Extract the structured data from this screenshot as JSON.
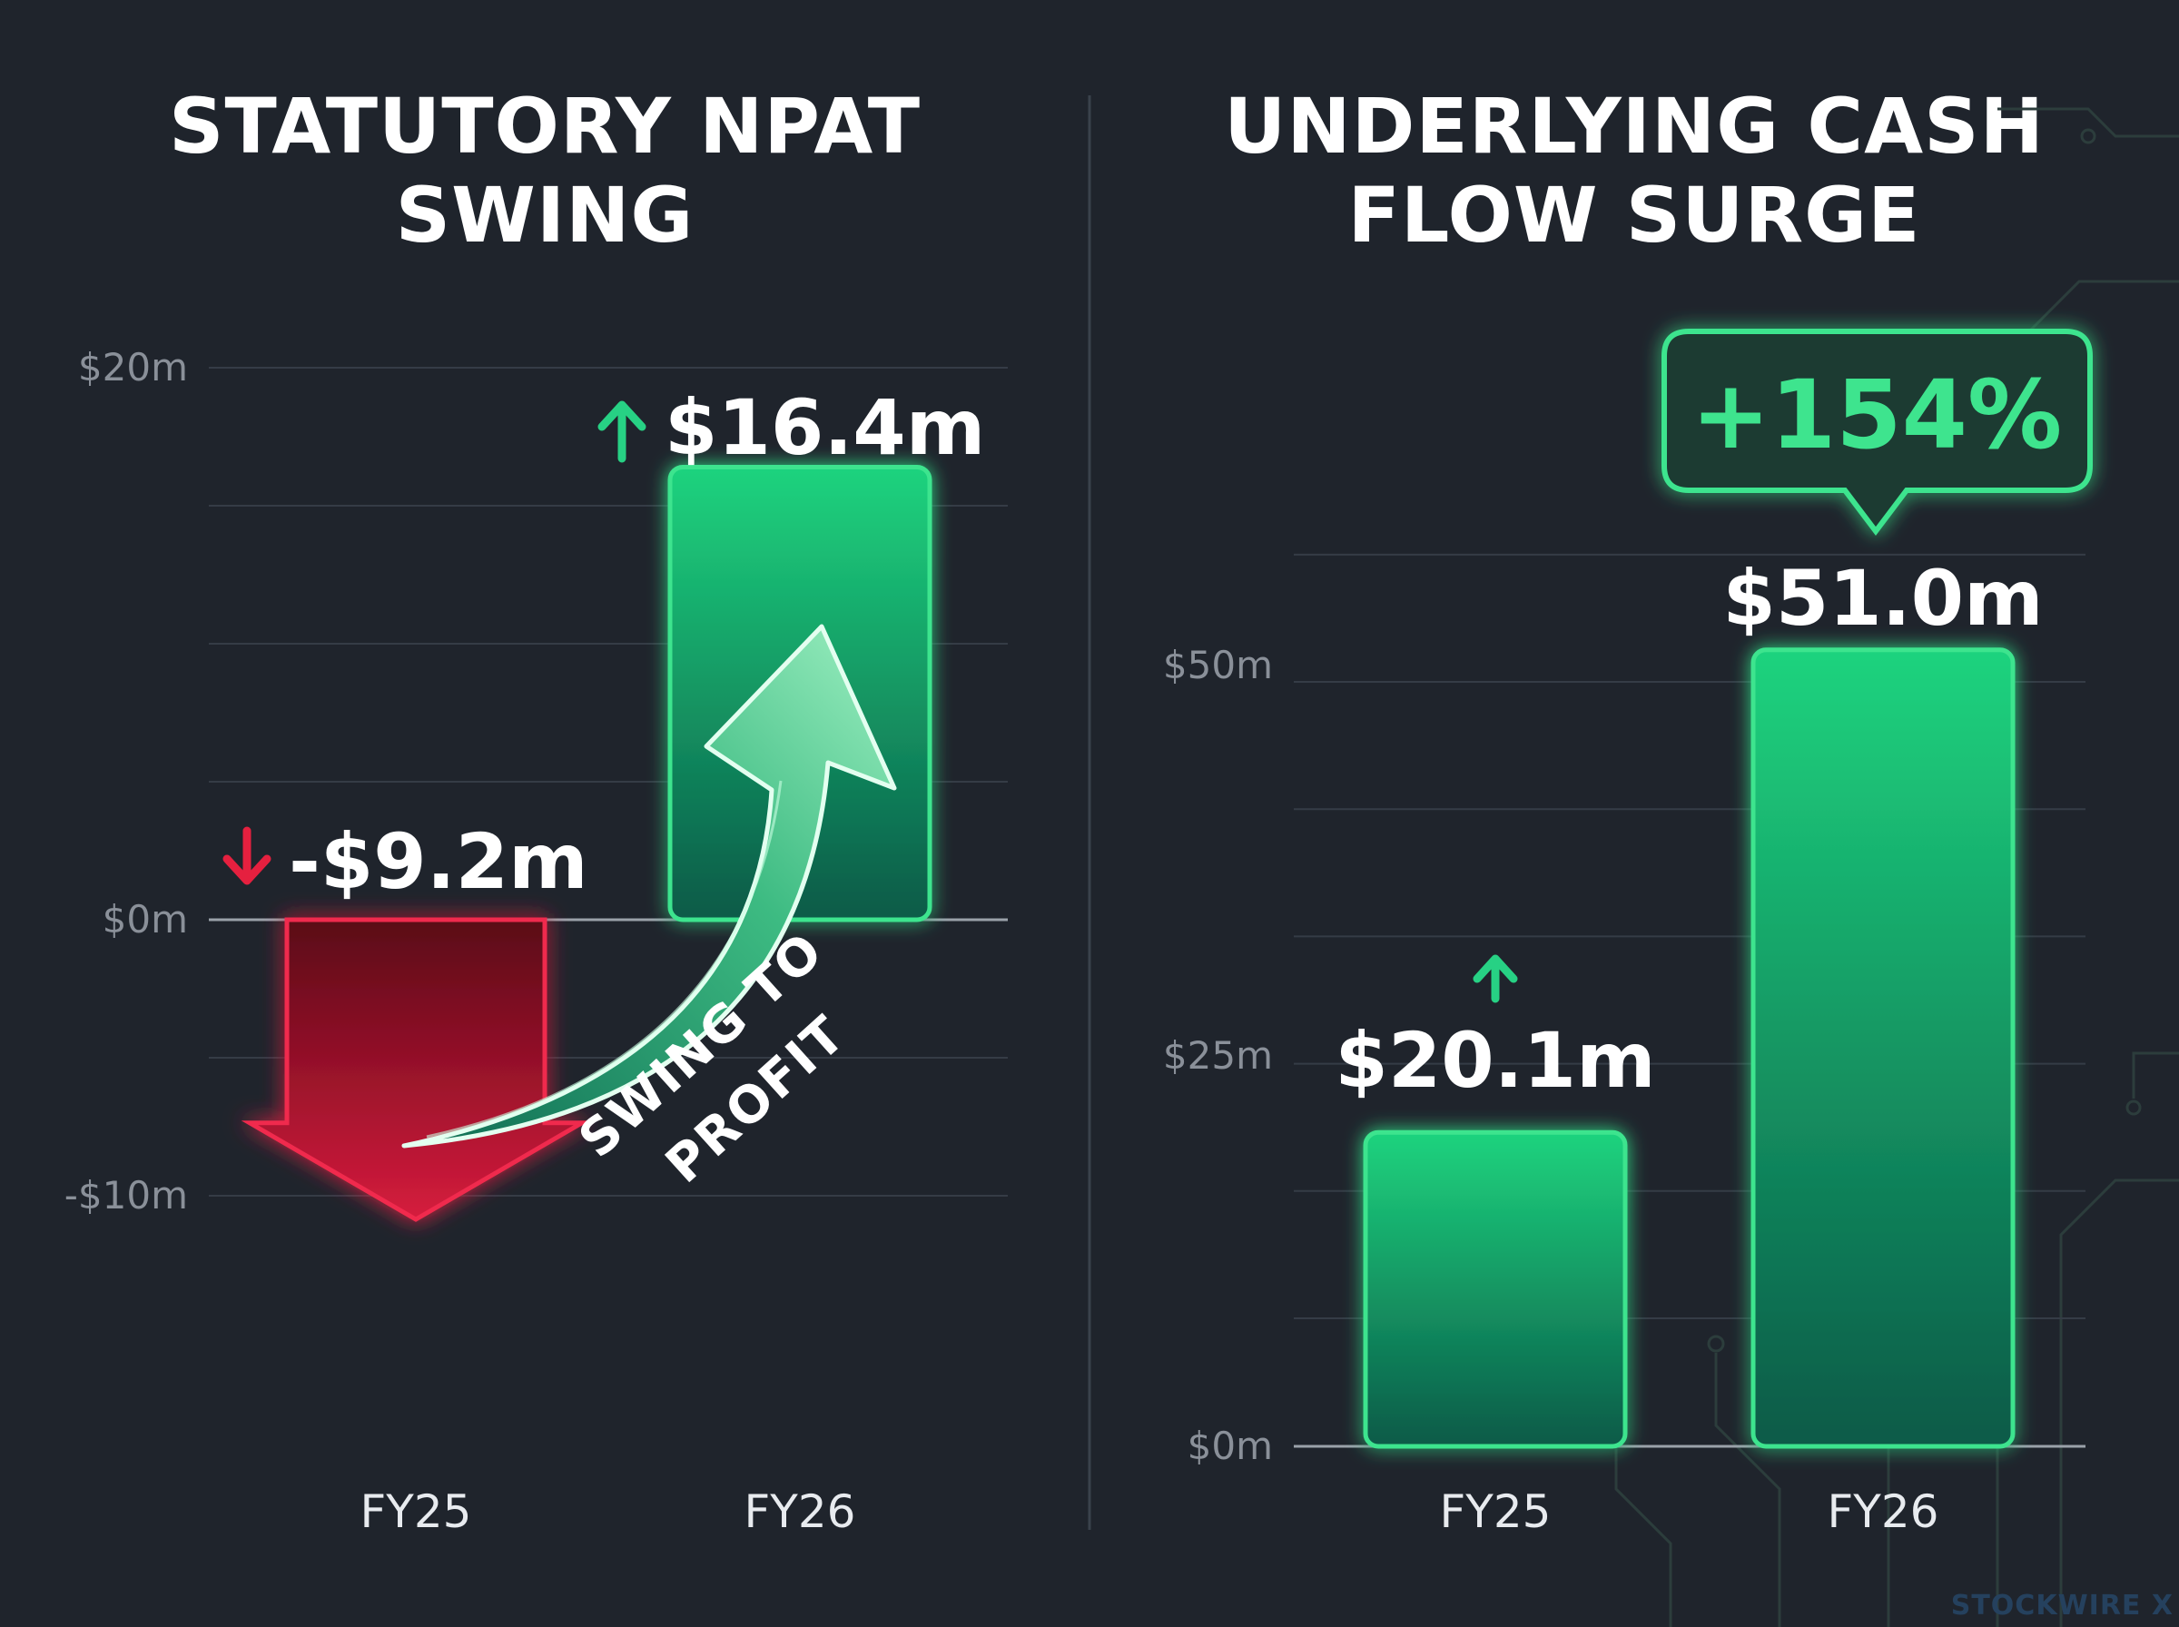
{
  "chart_data": [
    {
      "type": "bar",
      "title_lines": [
        "STATUTORY NPAT",
        "SWING"
      ],
      "categories": [
        "FY25",
        "FY26"
      ],
      "values": [
        -9.2,
        16.4
      ],
      "value_labels": [
        "-$9.2m",
        "$16.4m"
      ],
      "ylim": [
        -10,
        20
      ],
      "yticks": [
        -10,
        0,
        20
      ],
      "ytick_labels": [
        "-$10m",
        "$0m",
        "$20m"
      ],
      "annotation": [
        "SWING TO",
        "PROFIT"
      ],
      "grid": true,
      "colors": {
        "negative": "#d61c3d",
        "positive": "#1ed37e"
      }
    },
    {
      "type": "bar",
      "title_lines": [
        "UNDERLYING CASH",
        "FLOW SURGE"
      ],
      "categories": [
        "FY25",
        "FY26"
      ],
      "values": [
        20.1,
        51.0
      ],
      "value_labels": [
        "$20.1m",
        "$51.0m"
      ],
      "ylim": [
        0,
        60
      ],
      "yticks": [
        0,
        25,
        50
      ],
      "ytick_labels": [
        "$0m",
        "$25m",
        "$50m"
      ],
      "badge": "+154%",
      "grid": true,
      "colors": {
        "positive": "#1ed37e"
      }
    }
  ],
  "watermark": "STOCKWIRE X"
}
